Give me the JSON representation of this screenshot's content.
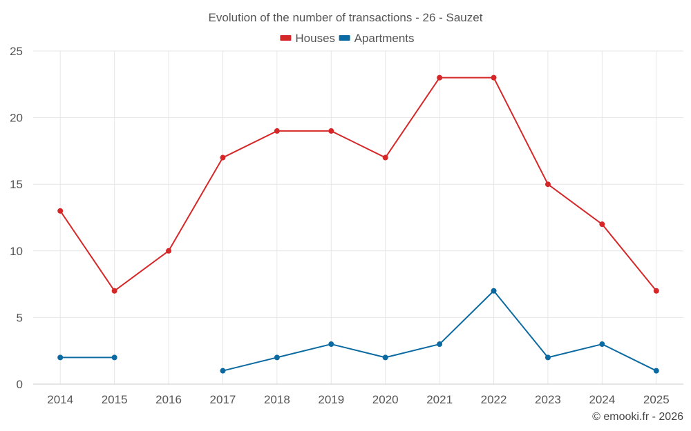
{
  "chart_data": {
    "type": "line",
    "title": "Evolution of the number of transactions - 26 - Sauzet",
    "categories": [
      "2014",
      "2015",
      "2016",
      "2017",
      "2018",
      "2019",
      "2020",
      "2021",
      "2022",
      "2023",
      "2024",
      "2025"
    ],
    "series": [
      {
        "name": "Houses",
        "color": "#d62728",
        "values": [
          13,
          7,
          10,
          17,
          19,
          19,
          17,
          23,
          23,
          15,
          12,
          7
        ]
      },
      {
        "name": "Apartments",
        "color": "#0a6aa1",
        "values": [
          2,
          2,
          null,
          1,
          2,
          3,
          2,
          3,
          7,
          2,
          3,
          1
        ]
      }
    ],
    "ylim": [
      0,
      25
    ],
    "yticks": [
      0,
      5,
      10,
      15,
      20,
      25
    ],
    "xlabel": "",
    "ylabel": "",
    "grid": true,
    "legend": "top-center"
  },
  "credit": "© emooki.fr - 2026"
}
